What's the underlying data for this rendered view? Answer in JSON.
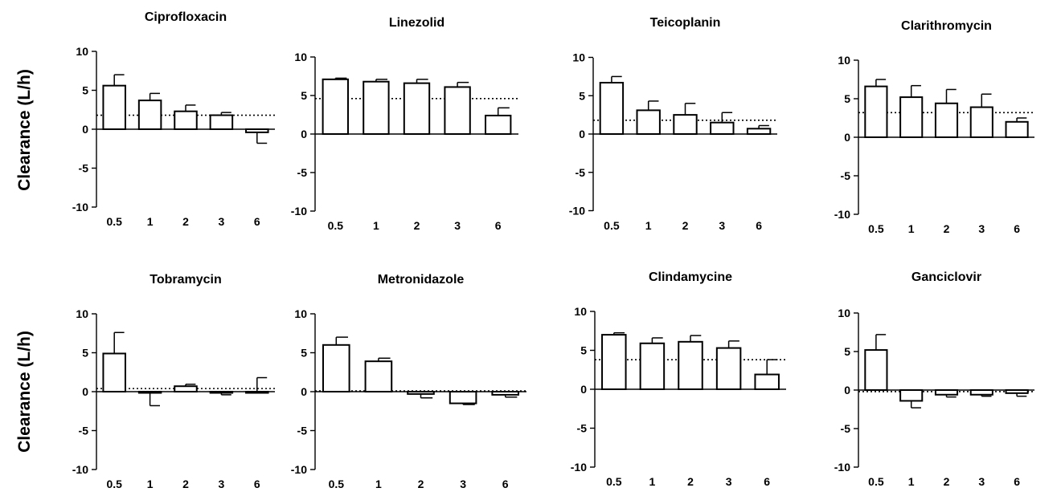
{
  "ylabel": "Clearance (L/h)",
  "chart_data": [
    {
      "type": "bar",
      "title": "Ciprofloxacin",
      "categories": [
        "0.5",
        "1",
        "2",
        "3",
        "6"
      ],
      "values": [
        5.6,
        3.7,
        2.3,
        1.8,
        -0.4
      ],
      "error": [
        1.4,
        0.9,
        0.8,
        0.35,
        1.4
      ],
      "reference": 1.8,
      "ylim": [
        -10,
        10
      ],
      "yticks": [
        10,
        5,
        0,
        -5,
        -10
      ]
    },
    {
      "type": "bar",
      "title": "Linezolid",
      "categories": [
        "0.5",
        "1",
        "2",
        "3",
        "6"
      ],
      "values": [
        7.1,
        6.8,
        6.6,
        6.1,
        2.4
      ],
      "error": [
        0.15,
        0.3,
        0.5,
        0.6,
        1.0
      ],
      "reference": 4.6,
      "ylim": [
        -10,
        10
      ],
      "yticks": [
        10,
        5,
        0,
        -5,
        -10
      ]
    },
    {
      "type": "bar",
      "title": "Teicoplanin",
      "categories": [
        "0.5",
        "1",
        "2",
        "3",
        "6"
      ],
      "values": [
        6.7,
        3.1,
        2.5,
        1.5,
        0.7
      ],
      "error": [
        0.8,
        1.2,
        1.5,
        1.3,
        0.4
      ],
      "reference": 1.8,
      "ylim": [
        -10,
        10
      ],
      "yticks": [
        10,
        5,
        0,
        -5,
        -10
      ]
    },
    {
      "type": "bar",
      "title": "Clarithromycin",
      "categories": [
        "0.5",
        "1",
        "2",
        "3",
        "6"
      ],
      "values": [
        6.6,
        5.2,
        4.4,
        3.9,
        2.0
      ],
      "error": [
        0.9,
        1.5,
        1.8,
        1.7,
        0.5
      ],
      "reference": 3.2,
      "ylim": [
        -10,
        10
      ],
      "yticks": [
        10,
        5,
        0,
        -5,
        -10
      ]
    },
    {
      "type": "bar",
      "title": "Tobramycin",
      "categories": [
        "0.5",
        "1",
        "2",
        "3",
        "6"
      ],
      "values": [
        4.9,
        -0.1,
        0.7,
        -0.1,
        0.0
      ],
      "error": [
        2.7,
        1.7,
        0.25,
        0.3,
        1.8
      ],
      "reference": 0.4,
      "ylim": [
        -10,
        10
      ],
      "yticks": [
        10,
        5,
        0,
        -5,
        -10
      ]
    },
    {
      "type": "bar",
      "title": "Metronidazole",
      "categories": [
        "0.5",
        "1",
        "2",
        "3",
        "6"
      ],
      "values": [
        6.0,
        3.9,
        -0.3,
        -1.5,
        -0.4
      ],
      "error": [
        1.0,
        0.4,
        0.5,
        0.15,
        0.3
      ],
      "reference": 0.1,
      "ylim": [
        -10,
        10
      ],
      "yticks": [
        10,
        5,
        0,
        -5,
        -10
      ]
    },
    {
      "type": "bar",
      "title": "Clindamycine",
      "categories": [
        "0.5",
        "1",
        "2",
        "3",
        "6"
      ],
      "values": [
        7.0,
        5.9,
        6.1,
        5.3,
        1.9
      ],
      "error": [
        0.25,
        0.7,
        0.8,
        0.9,
        1.9
      ],
      "reference": 3.8,
      "ylim": [
        -10,
        10
      ],
      "yticks": [
        10,
        5,
        0,
        -5,
        -10
      ]
    },
    {
      "type": "bar",
      "title": "Ganciclovir",
      "categories": [
        "0.5",
        "1",
        "2",
        "3",
        "6"
      ],
      "values": [
        5.2,
        -1.4,
        -0.6,
        -0.6,
        -0.4
      ],
      "error": [
        2.0,
        0.9,
        0.3,
        0.2,
        0.4
      ],
      "reference": -0.2,
      "ylim": [
        -10,
        10
      ],
      "yticks": [
        10,
        5,
        0,
        -5,
        -10
      ]
    }
  ]
}
